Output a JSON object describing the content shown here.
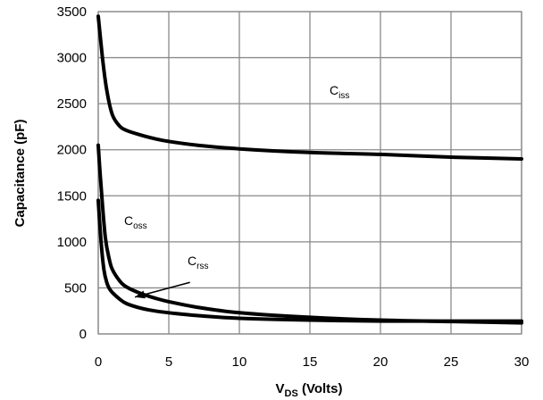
{
  "chart_data": {
    "type": "line",
    "title": "",
    "xlabel": {
      "main": "V",
      "sub": "DS",
      "rest": " (Volts)"
    },
    "ylabel": "Capacitance (pF)",
    "xlim": [
      0,
      30
    ],
    "ylim": [
      0,
      3500
    ],
    "xticks": [
      0,
      5,
      10,
      15,
      20,
      25,
      30
    ],
    "yticks": [
      0,
      500,
      1000,
      1500,
      2000,
      2500,
      3000,
      3500
    ],
    "grid": true,
    "series": [
      {
        "label": {
          "main": "C",
          "sub": "iss"
        },
        "x": [
          0,
          0.3,
          0.6,
          1,
          1.5,
          2,
          3,
          4,
          5,
          7,
          10,
          15,
          20,
          25,
          30
        ],
        "y": [
          3450,
          3000,
          2650,
          2380,
          2260,
          2210,
          2160,
          2120,
          2090,
          2050,
          2010,
          1970,
          1950,
          1920,
          1900
        ]
      },
      {
        "label": {
          "main": "C",
          "sub": "oss"
        },
        "x": [
          0,
          0.2,
          0.5,
          0.8,
          1,
          1.5,
          2,
          3,
          4,
          5,
          7,
          10,
          15,
          20,
          25,
          30
        ],
        "y": [
          2050,
          1600,
          1050,
          800,
          700,
          580,
          510,
          440,
          390,
          350,
          290,
          230,
          180,
          150,
          135,
          120
        ]
      },
      {
        "label": {
          "main": "C",
          "sub": "rss"
        },
        "x": [
          0,
          0.2,
          0.4,
          0.6,
          0.8,
          1,
          1.5,
          2,
          3,
          4,
          5,
          7,
          10,
          15,
          20,
          25,
          30
        ],
        "y": [
          1450,
          1000,
          700,
          560,
          490,
          450,
          380,
          330,
          280,
          250,
          230,
          200,
          170,
          150,
          140,
          140,
          140
        ]
      }
    ],
    "annotations": [
      {
        "target_series": 2,
        "from": [
          6.5,
          560
        ],
        "to": [
          2.6,
          400
        ]
      }
    ]
  }
}
